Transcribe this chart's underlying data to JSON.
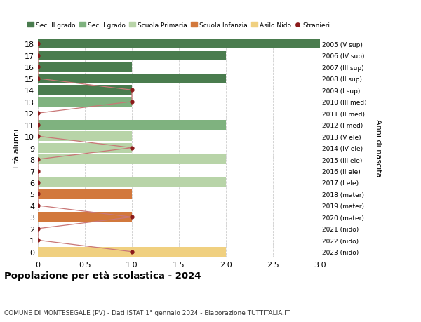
{
  "ages": [
    18,
    17,
    16,
    15,
    14,
    13,
    12,
    11,
    10,
    9,
    8,
    7,
    6,
    5,
    4,
    3,
    2,
    1,
    0
  ],
  "right_labels": [
    "2005 (V sup)",
    "2006 (IV sup)",
    "2007 (III sup)",
    "2008 (II sup)",
    "2009 (I sup)",
    "2010 (III med)",
    "2011 (II med)",
    "2012 (I med)",
    "2013 (V ele)",
    "2014 (IV ele)",
    "2015 (III ele)",
    "2016 (II ele)",
    "2017 (I ele)",
    "2018 (mater)",
    "2019 (mater)",
    "2020 (mater)",
    "2021 (nido)",
    "2022 (nido)",
    "2023 (nido)"
  ],
  "bar_values": [
    3,
    2,
    1,
    2,
    1,
    1,
    0,
    2,
    1,
    1,
    2,
    0,
    2,
    1,
    0,
    1,
    0,
    0,
    2
  ],
  "bar_colors": [
    "#4a7c4e",
    "#4a7c4e",
    "#4a7c4e",
    "#4a7c4e",
    "#4a7c4e",
    "#7fb27f",
    "#7fb27f",
    "#7fb27f",
    "#b8d4a8",
    "#b8d4a8",
    "#b8d4a8",
    "#b8d4a8",
    "#b8d4a8",
    "#d2783c",
    "#d2783c",
    "#d2783c",
    "#f0d080",
    "#f0d080",
    "#f0d080"
  ],
  "stranieri_values": [
    0,
    0,
    0,
    0,
    1,
    1,
    0,
    0,
    0,
    1,
    0,
    0,
    0,
    0,
    0,
    1,
    0,
    0,
    1
  ],
  "stranieri_color": "#8b1a1a",
  "stranieri_line_color": "#c97777",
  "xlim": [
    0,
    3.0
  ],
  "xticks": [
    0,
    0.5,
    1.0,
    1.5,
    2.0,
    2.5,
    3.0
  ],
  "xtick_labels": [
    "0",
    "0.5",
    "1.0",
    "1.5",
    "2.0",
    "2.5",
    "3.0"
  ],
  "ylabel": "Età alunni",
  "right_axis_label": "Anni di nascita",
  "title": "Popolazione per età scolastica - 2024",
  "subtitle": "COMUNE DI MONTESEGALE (PV) - Dati ISTAT 1° gennaio 2024 - Elaborazione TUTTITALIA.IT",
  "legend_items": [
    {
      "label": "Sec. II grado",
      "color": "#4a7c4e",
      "type": "patch"
    },
    {
      "label": "Sec. I grado",
      "color": "#7fb27f",
      "type": "patch"
    },
    {
      "label": "Scuola Primaria",
      "color": "#b8d4a8",
      "type": "patch"
    },
    {
      "label": "Scuola Infanzia",
      "color": "#d2783c",
      "type": "patch"
    },
    {
      "label": "Asilo Nido",
      "color": "#f0d080",
      "type": "patch"
    },
    {
      "label": "Stranieri",
      "color": "#8b1a1a",
      "type": "circle"
    }
  ],
  "bg_color": "#ffffff",
  "grid_color": "#cccccc",
  "bar_height": 0.85
}
